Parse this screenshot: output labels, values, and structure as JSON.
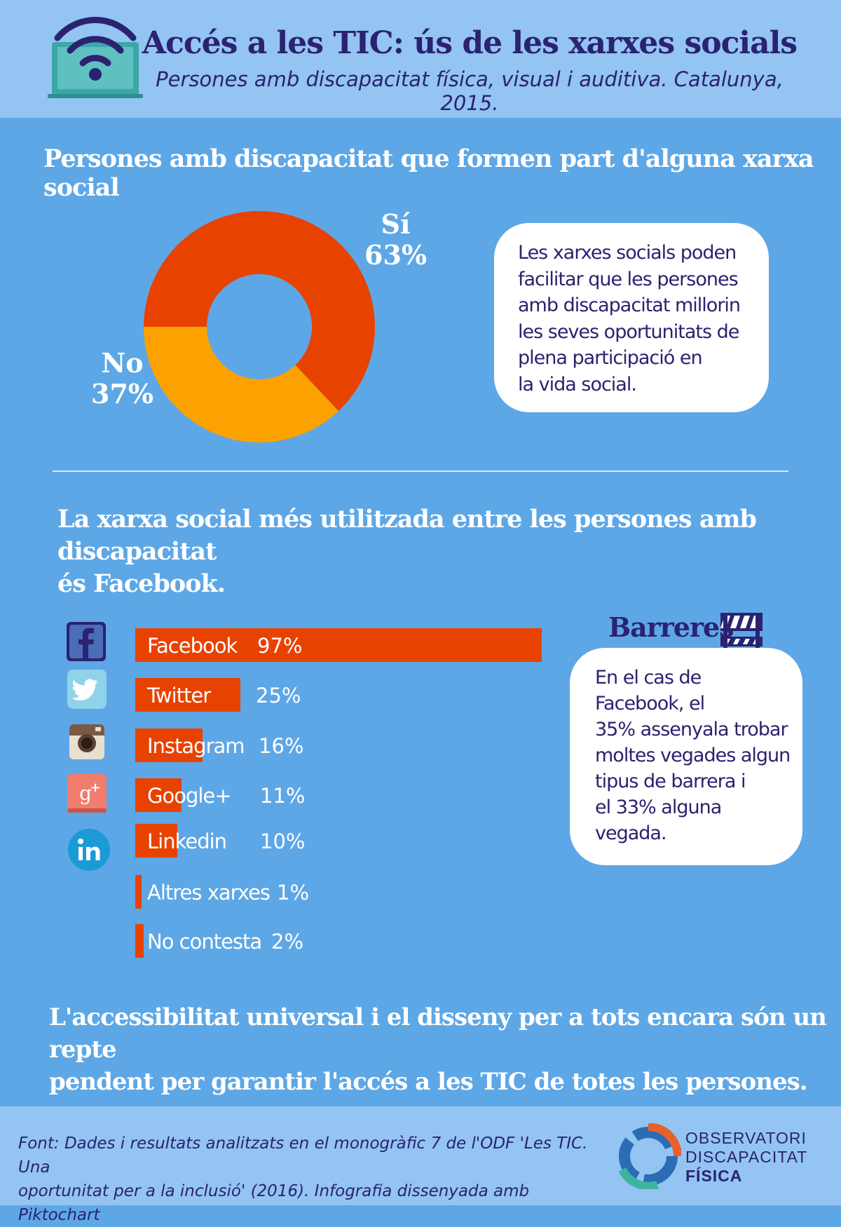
{
  "header": {
    "title": "Accés a les TIC: ús de les xarxes socials",
    "subtitle": "Persones amb discapacitat física, visual i auditiva. Catalunya, 2015."
  },
  "section1": {
    "title": "Persones amb discapacitat que formen part d'alguna xarxa social",
    "note_lines": [
      "Les xarxes socials poden",
      "facilitar que les persones",
      "amb discapacitat millorin",
      "les seves oportunitats de",
      "plena participació en",
      "la vida social."
    ]
  },
  "section2": {
    "title_lines": [
      "La xarxa social més utilitzada entre les persones amb discapacitat",
      "és Facebook."
    ]
  },
  "barreres": {
    "title": "Barreres",
    "text_lines": [
      "En el cas de",
      "Facebook, el",
      "35% assenyala trobar",
      "moltes vegades algun",
      "tipus de barrera i",
      "el 33% alguna",
      "vegada."
    ]
  },
  "conclusion": {
    "lines": [
      "L'accessibilitat universal i el disseny per a tots encara són un repte",
      "pendent per garantir l'accés a les TIC de totes les persones."
    ]
  },
  "footer": {
    "source_lines": [
      "Font: Dades i resultats analitzats en el monogràfic 7 de l'ODF 'Les TIC. Una",
      "oportunitat per a la inclusió' (2016). Infografia dissenyada amb Piktochart"
    ],
    "logo_lines": [
      "OBSERVATORI",
      "DISCAPACITAT",
      "FÍSICA"
    ]
  },
  "colors": {
    "orange_red": "#e84200",
    "amber": "#fba200",
    "navy": "#2b2270",
    "background": "#5ea7e6"
  },
  "icons": [
    "wifi-laptop-icon",
    "facebook-icon",
    "twitter-icon",
    "instagram-icon",
    "google-plus-icon",
    "linkedin-icon",
    "barrier-icon",
    "odf-logo-icon"
  ],
  "chart_data": [
    {
      "type": "pie",
      "title": "Persones amb discapacitat que formen part d'alguna xarxa social",
      "categories": [
        "Sí",
        "No"
      ],
      "values": [
        63,
        37
      ],
      "value_labels": [
        "63%",
        "37%"
      ],
      "colors": [
        "#e84200",
        "#fba200"
      ],
      "donut": true
    },
    {
      "type": "bar",
      "orientation": "horizontal",
      "categories": [
        "Facebook",
        "Twitter",
        "Instagram",
        "Google+",
        "Linkedin",
        "Altres xarxes",
        "No contesta"
      ],
      "values": [
        97,
        25,
        16,
        11,
        10,
        1,
        2
      ],
      "value_labels": [
        "97%",
        "25%",
        "16%",
        "11%",
        "10%",
        "1%",
        "2%"
      ],
      "xlim": [
        0,
        100
      ],
      "color": "#e84200"
    }
  ]
}
